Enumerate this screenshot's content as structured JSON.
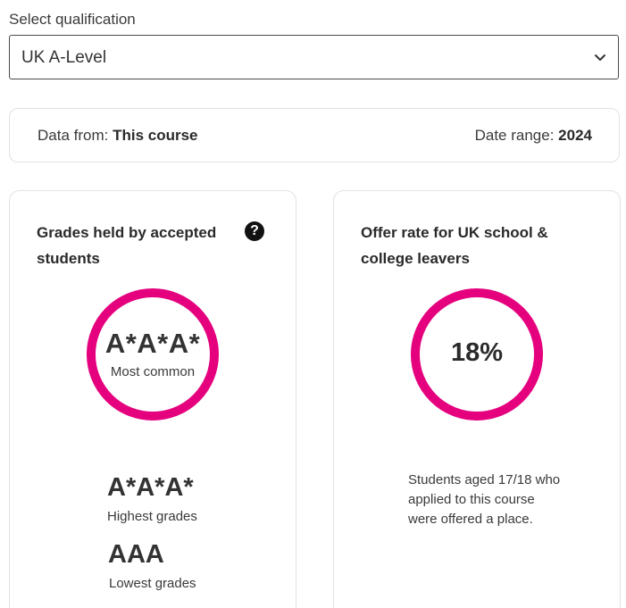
{
  "qualification": {
    "label": "Select qualification",
    "selected": "UK A-Level"
  },
  "info": {
    "data_from_label": "Data from:",
    "data_from_value": "This course",
    "date_range_label": "Date range:",
    "date_range_value": "2024"
  },
  "grades_card": {
    "title": "Grades held by accepted students",
    "help_icon": "?",
    "most_common_value": "A*A*A*",
    "most_common_label": "Most common",
    "highest_value": "A*A*A*",
    "highest_label": "Highest grades",
    "lowest_value": "AAA",
    "lowest_label": "Lowest grades"
  },
  "offer_card": {
    "title": "Offer rate for UK school & college leavers",
    "percent": "18%",
    "description": "Students aged 17/18 who applied to this course were offered a place."
  },
  "colors": {
    "accent_ring": "#e5007e",
    "border": "#e2e2e2",
    "text": "#2a2a2a"
  },
  "icons": {
    "select_chevron": "chevron-down-icon",
    "help": "question-circle-icon"
  }
}
